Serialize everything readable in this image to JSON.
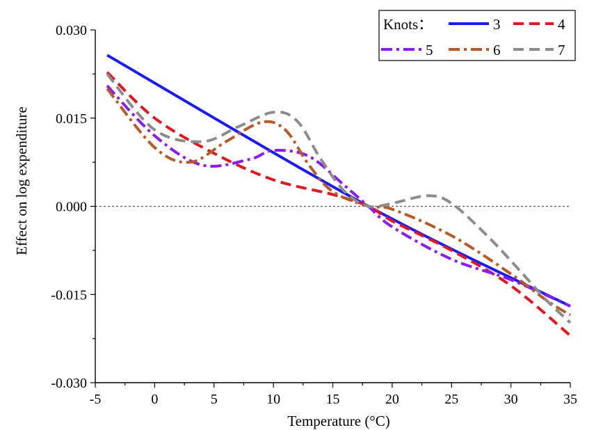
{
  "chart_data": {
    "type": "line",
    "title": "",
    "xlabel": "Temperature (°C)",
    "ylabel": "Effect on log expenditure",
    "xlim": [
      -5,
      35
    ],
    "ylim": [
      -0.03,
      0.03
    ],
    "x_ticks": [
      -5,
      0,
      5,
      10,
      15,
      20,
      25,
      30,
      35
    ],
    "x_tick_labels": [
      "-5",
      "0",
      "5",
      "10",
      "15",
      "20",
      "25",
      "30",
      "35"
    ],
    "y_ticks": [
      -0.03,
      -0.015,
      0,
      0.015,
      0.03
    ],
    "y_tick_labels": [
      "-0.030",
      "-0.015",
      "0.000",
      "0.015",
      "0.030"
    ],
    "reference_line": 0,
    "grid": false,
    "legend": {
      "title": "Knots：",
      "placement": "top-right"
    },
    "series": [
      {
        "name": "3",
        "color": "#1a1aff",
        "dash": "solid",
        "x": [
          -4,
          18,
          35
        ],
        "y": [
          0.0257,
          0.0,
          -0.017
        ]
      },
      {
        "name": "4",
        "color": "#e8141e",
        "dash": "dash",
        "x": [
          -4,
          0,
          5,
          10,
          15,
          18,
          20,
          25,
          30,
          35
        ],
        "y": [
          0.0228,
          0.015,
          0.009,
          0.0045,
          0.002,
          0.0,
          -0.0025,
          -0.0075,
          -0.0135,
          -0.022
        ]
      },
      {
        "name": "5",
        "color": "#8a1aff",
        "dash": "dashdot",
        "x": [
          -4,
          0,
          4,
          8,
          10,
          13,
          16,
          18,
          20,
          25,
          30,
          35
        ],
        "y": [
          0.0205,
          0.012,
          0.007,
          0.008,
          0.0095,
          0.0085,
          0.0035,
          0.0,
          -0.0035,
          -0.009,
          -0.0125,
          -0.017
        ]
      },
      {
        "name": "6",
        "color": "#b85a28",
        "dash": "dashdot",
        "x": [
          -4,
          0,
          3,
          6,
          9,
          11,
          13,
          15,
          18,
          20,
          25,
          30,
          33,
          35
        ],
        "y": [
          0.02,
          0.01,
          0.0075,
          0.011,
          0.0143,
          0.013,
          0.007,
          0.0025,
          0.0,
          -0.0005,
          -0.005,
          -0.0115,
          -0.016,
          -0.0185
        ]
      },
      {
        "name": "7",
        "color": "#8c8c8c",
        "dash": "dash",
        "x": [
          -4,
          0,
          4,
          7,
          10,
          12,
          14,
          16,
          18,
          20,
          23,
          25,
          28,
          31,
          33,
          35
        ],
        "y": [
          0.0225,
          0.013,
          0.011,
          0.0135,
          0.016,
          0.0145,
          0.008,
          0.0025,
          0.0,
          0.0005,
          0.0018,
          0.0005,
          -0.005,
          -0.0115,
          -0.016,
          -0.0198
        ]
      }
    ]
  }
}
